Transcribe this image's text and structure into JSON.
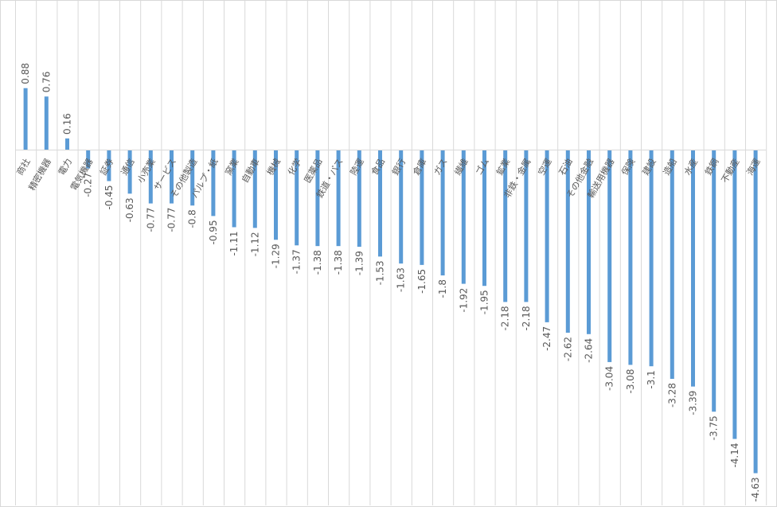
{
  "chart_data": {
    "type": "bar",
    "title": "",
    "xlabel": "",
    "ylabel": "",
    "ylim": [
      -4.63,
      0.88
    ],
    "grid": "vertical",
    "legend": "none",
    "bar_color": "#5b9bd5",
    "categories": [
      "商社",
      "精密機器",
      "電力",
      "電気機器",
      "証券",
      "通信",
      "小売業",
      "サービス",
      "その他製造",
      "パルプ・紙",
      "窯業",
      "自動車",
      "機械",
      "化学",
      "医薬品",
      "鉄道・バス",
      "陸運",
      "食品",
      "銀行",
      "倉庫",
      "ガス",
      "繊維",
      "ゴム",
      "鉱業",
      "非鉄・金属",
      "空運",
      "石油",
      "その他金融",
      "輸送用機器",
      "保険",
      "建設",
      "造船",
      "水産",
      "鉄鋼",
      "不動産",
      "海運"
    ],
    "values": [
      0.88,
      0.76,
      0.16,
      -0.27,
      -0.45,
      -0.63,
      -0.77,
      -0.77,
      -0.8,
      -0.95,
      -1.11,
      -1.12,
      -1.29,
      -1.37,
      -1.38,
      -1.38,
      -1.39,
      -1.53,
      -1.63,
      -1.65,
      -1.8,
      -1.92,
      -1.95,
      -2.18,
      -2.18,
      -2.47,
      -2.62,
      -2.64,
      -3.04,
      -3.08,
      -3.1,
      -3.28,
      -3.39,
      -3.75,
      -4.14,
      -4.63
    ],
    "value_labels": [
      "0.88",
      "0.76",
      "0.16",
      "-0.27",
      "-0.45",
      "-0.63",
      "-0.77",
      "-0.77",
      "-0.8",
      "-0.95",
      "-1.11",
      "-1.12",
      "-1.29",
      "-1.37",
      "-1.38",
      "-1.38",
      "-1.39",
      "-1.53",
      "-1.63",
      "-1.65",
      "-1.8",
      "-1.92",
      "-1.95",
      "-2.18",
      "-2.18",
      "-2.47",
      "-2.62",
      "-2.64",
      "-3.04",
      "-3.08",
      "-3.1",
      "-3.28",
      "-3.39",
      "-3.75",
      "-4.14",
      "-4.63"
    ]
  }
}
